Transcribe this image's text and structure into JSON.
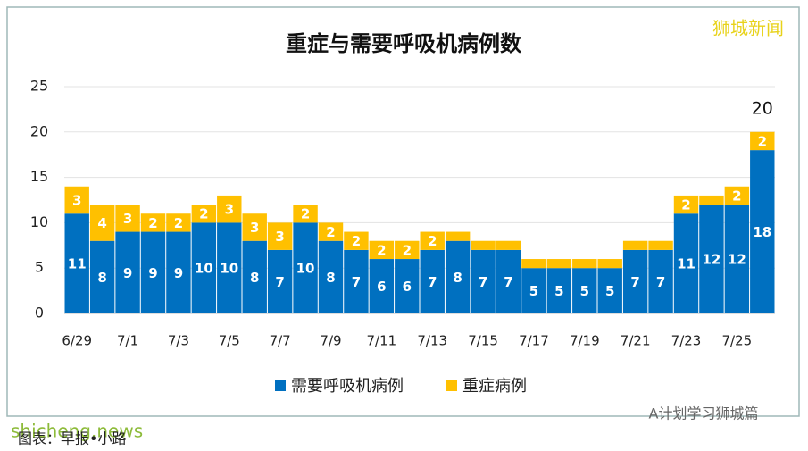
{
  "chart_data": {
    "type": "stacked_bar",
    "title": "重症与需要呼吸机病例数",
    "categories": [
      "6/29",
      null,
      "7/1",
      null,
      "7/3",
      null,
      "7/5",
      null,
      "7/7",
      null,
      "7/9",
      null,
      "7/11",
      null,
      "7/13",
      null,
      "7/15",
      null,
      "7/17",
      null,
      "7/19",
      null,
      "7/21",
      null,
      "7/23",
      null,
      "7/25",
      null
    ],
    "series": [
      {
        "name": "需要呼吸机病例",
        "color": "#0070c0",
        "values": [
          11,
          8,
          9,
          9,
          9,
          10,
          10,
          8,
          7,
          10,
          8,
          7,
          6,
          6,
          7,
          8,
          7,
          7,
          5,
          5,
          5,
          5,
          7,
          7,
          11,
          12,
          12,
          18
        ]
      },
      {
        "name": "重症病例",
        "color": "#ffc000",
        "values": [
          3,
          4,
          3,
          2,
          2,
          2,
          3,
          3,
          3,
          2,
          2,
          2,
          2,
          2,
          2,
          1,
          1,
          1,
          1,
          1,
          1,
          1,
          1,
          1,
          2,
          1,
          2,
          2
        ],
        "value_labels": [
          3,
          4,
          3,
          2,
          2,
          2,
          3,
          3,
          3,
          2,
          2,
          2,
          2,
          2,
          2,
          null,
          null,
          null,
          null,
          null,
          null,
          null,
          null,
          null,
          2,
          null,
          2,
          2
        ]
      }
    ],
    "annotations": [
      {
        "index": 27,
        "text": "20"
      }
    ],
    "ylim": [
      0,
      25
    ],
    "yticks": [
      0,
      5,
      10,
      15,
      20,
      25
    ],
    "grid": true,
    "legend": "bottom"
  },
  "watermarks": {
    "top_right": "狮城新闻",
    "bottom_right": "A计划学习狮城篇",
    "bottom_left": "shicheng.news",
    "caption": "图表：早报•小路"
  }
}
